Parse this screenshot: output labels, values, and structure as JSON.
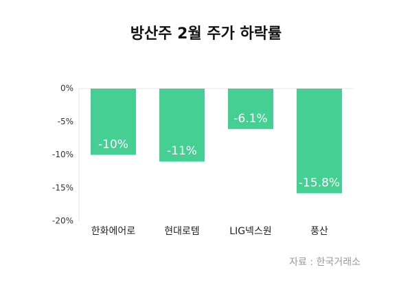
{
  "chart_data": {
    "type": "bar",
    "title": "방산주 2월 주가 하락률",
    "categories": [
      "한화에어로",
      "현대로템",
      "LIG넥스원",
      "풍산"
    ],
    "values": [
      -10,
      -11,
      -6.1,
      -15.8
    ],
    "value_labels": [
      "-10%",
      "-11%",
      "-6.1%",
      "-15.8%"
    ],
    "color": "#45cf93",
    "ylim": [
      -20,
      0
    ],
    "yticks": [
      {
        "value": 0,
        "label": "0%"
      },
      {
        "value": -5,
        "label": "-5%"
      },
      {
        "value": -10,
        "label": "-10%"
      },
      {
        "value": -15,
        "label": "-15%"
      },
      {
        "value": -20,
        "label": "-20%"
      }
    ],
    "source": "자료 : 한국거래소"
  }
}
